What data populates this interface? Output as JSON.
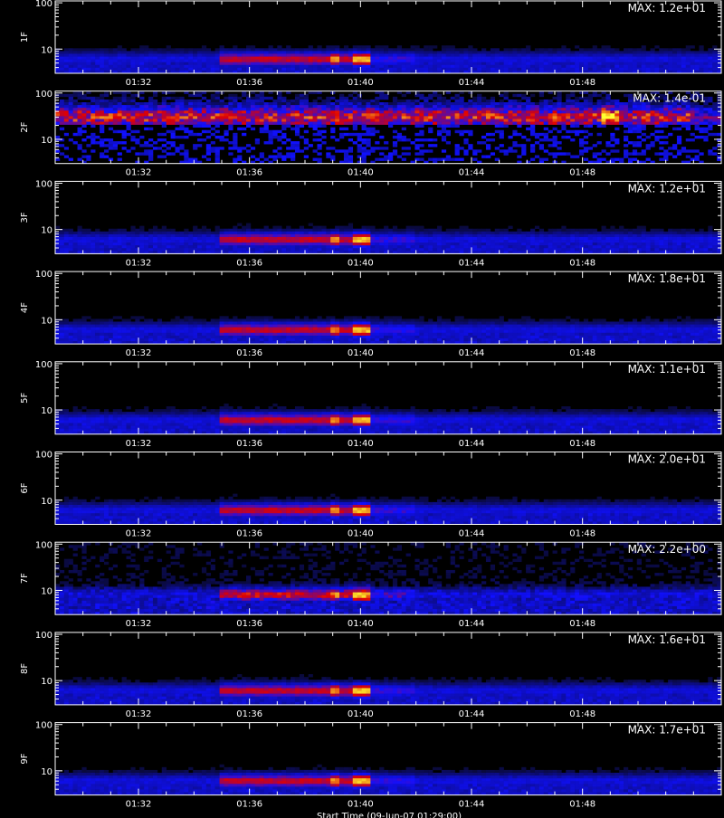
{
  "chart_data": [
    {
      "type": "heatmap",
      "panel_label": "1F",
      "max_label": "MAX: 1.2e+01",
      "yticks": [
        "100",
        "10"
      ],
      "xticks": [
        "01:32",
        "01:36",
        "01:40",
        "01:44",
        "01:48"
      ],
      "band_center": 6,
      "band_start": "01:35",
      "band_end": "01:40",
      "peak_time": "01:40",
      "noise": "low"
    },
    {
      "type": "heatmap",
      "panel_label": "2F",
      "max_label": "MAX: 1.4e-01",
      "yticks": [
        "100",
        "10"
      ],
      "xticks": [
        "01:32",
        "01:36",
        "01:40",
        "01:44",
        "01:48"
      ],
      "band_center": 30,
      "band_start": "01:29",
      "band_end": "01:52",
      "peak_time": "01:49",
      "noise": "high"
    },
    {
      "type": "heatmap",
      "panel_label": "3F",
      "max_label": "MAX: 1.2e+01",
      "yticks": [
        "100",
        "10"
      ],
      "xticks": [
        "01:32",
        "01:36",
        "01:40",
        "01:44",
        "01:48"
      ],
      "band_center": 6,
      "band_start": "01:35",
      "band_end": "01:40",
      "peak_time": "01:40",
      "noise": "low"
    },
    {
      "type": "heatmap",
      "panel_label": "4F",
      "max_label": "MAX: 1.8e+01",
      "yticks": [
        "100",
        "10"
      ],
      "xticks": [
        "01:32",
        "01:36",
        "01:40",
        "01:44",
        "01:48"
      ],
      "band_center": 6,
      "band_start": "01:35",
      "band_end": "01:40",
      "peak_time": "01:40",
      "noise": "low"
    },
    {
      "type": "heatmap",
      "panel_label": "5F",
      "max_label": "MAX: 1.1e+01",
      "yticks": [
        "100",
        "10"
      ],
      "xticks": [
        "01:32",
        "01:36",
        "01:40",
        "01:44",
        "01:48"
      ],
      "band_center": 6,
      "band_start": "01:35",
      "band_end": "01:40",
      "peak_time": "01:40",
      "noise": "low"
    },
    {
      "type": "heatmap",
      "panel_label": "6F",
      "max_label": "MAX: 2.0e+01",
      "yticks": [
        "100",
        "10"
      ],
      "xticks": [
        "01:32",
        "01:36",
        "01:40",
        "01:44",
        "01:48"
      ],
      "band_center": 6,
      "band_start": "01:35",
      "band_end": "01:40",
      "peak_time": "01:40",
      "noise": "low"
    },
    {
      "type": "heatmap",
      "panel_label": "7F",
      "max_label": "MAX: 2.2e+00",
      "yticks": [
        "100",
        "10"
      ],
      "xticks": [
        "01:32",
        "01:36",
        "01:40",
        "01:44",
        "01:48"
      ],
      "band_center": 8,
      "band_start": "01:35",
      "band_end": "01:40",
      "peak_time": "01:40",
      "noise": "medium"
    },
    {
      "type": "heatmap",
      "panel_label": "8F",
      "max_label": "MAX: 1.6e+01",
      "yticks": [
        "100",
        "10"
      ],
      "xticks": [
        "01:32",
        "01:36",
        "01:40",
        "01:44",
        "01:48"
      ],
      "band_center": 6,
      "band_start": "01:35",
      "band_end": "01:40",
      "peak_time": "01:40",
      "noise": "low"
    },
    {
      "type": "heatmap",
      "panel_label": "9F",
      "max_label": "MAX: 1.7e+01",
      "yticks": [
        "100",
        "10"
      ],
      "xticks": [
        "01:32",
        "01:36",
        "01:40",
        "01:44",
        "01:48"
      ],
      "band_center": 6,
      "band_start": "01:35",
      "band_end": "01:40",
      "peak_time": "01:40",
      "noise": "low"
    }
  ],
  "footer_label": "Start Time (09-Jun-07 01:29:00)",
  "time_range": [
    "01:29",
    "01:53"
  ],
  "y_range": [
    3,
    110
  ],
  "y_scale": "log",
  "colors": {
    "background": "#000000",
    "axis": "#ffffff",
    "low": "#1010ff",
    "mid": "#e00000",
    "high": "#ffff30"
  }
}
